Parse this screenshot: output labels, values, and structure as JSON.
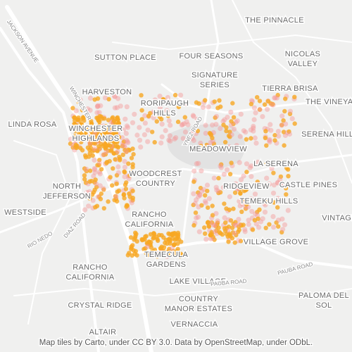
{
  "neighborhoods": [
    {
      "lines": [
        "THE PINNACLE"
      ]
    },
    {
      "lines": [
        "SUTTON PLACE"
      ]
    },
    {
      "lines": [
        "FOUR SEASONS"
      ]
    },
    {
      "lines": [
        "NICOLAS",
        "VALLEY"
      ]
    },
    {
      "lines": [
        "HARVESTON"
      ]
    },
    {
      "lines": [
        "SIGNATURE",
        "SERIES"
      ]
    },
    {
      "lines": [
        "TIERRA BRISA"
      ]
    },
    {
      "lines": [
        "RORIPAUGH",
        "HILLS"
      ]
    },
    {
      "lines": [
        "THE VINEYARD"
      ]
    },
    {
      "lines": [
        "LINDA ROSA"
      ]
    },
    {
      "lines": [
        "WINCHESTER",
        "HIGHLANDS"
      ]
    },
    {
      "lines": [
        "SERENA HILLS"
      ]
    },
    {
      "lines": [
        "MEADOWVIEW"
      ]
    },
    {
      "lines": [
        "LA SERENA"
      ]
    },
    {
      "lines": [
        "WOODCREST",
        "COUNTRY"
      ]
    },
    {
      "lines": [
        "NORTH",
        "JEFFERSON"
      ]
    },
    {
      "lines": [
        "RIDGEVIEW"
      ]
    },
    {
      "lines": [
        "CASTLE PINES"
      ]
    },
    {
      "lines": [
        "TEMEKU HILLS"
      ]
    },
    {
      "lines": [
        "WESTSIDE"
      ]
    },
    {
      "lines": [
        "RANCHO",
        "CALIFORNIA"
      ]
    },
    {
      "lines": [
        "VINTAGE"
      ]
    },
    {
      "lines": [
        "VILLAGE GROVE"
      ]
    },
    {
      "lines": [
        "TEMECULA",
        "GARDENS"
      ]
    },
    {
      "lines": [
        "RANCHO",
        "CALIFORNIA"
      ]
    },
    {
      "lines": [
        "LAKE VILLAGE"
      ]
    },
    {
      "lines": [
        "CRYSTAL RIDGE"
      ]
    },
    {
      "lines": [
        "COUNTRY",
        "MANOR ESTATES"
      ]
    },
    {
      "lines": [
        "PALOMA DEL",
        "SOL"
      ]
    },
    {
      "lines": [
        "VERNACCIA"
      ]
    },
    {
      "lines": [
        "ALTAIR"
      ]
    }
  ],
  "roads": [
    "JACKSON AVENUE",
    "PAUBA ROAD",
    "PAUBA ROAD",
    "RIO NEDO",
    "DIAZ ROAD",
    "YNEZ ROAD",
    "WINCHESTER"
  ],
  "attribution": "Map tiles by Carto, under CC BY 3.0. Data by OpenStreetMap, under ODbL."
}
